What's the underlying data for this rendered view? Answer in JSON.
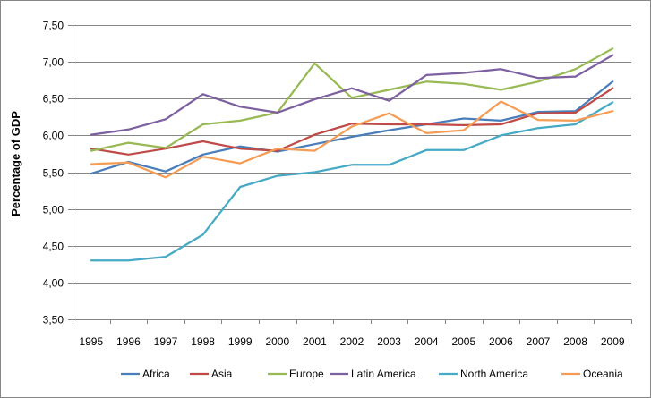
{
  "chart_data": {
    "type": "line",
    "title": "",
    "xlabel": "",
    "ylabel": "Percentage of GDP",
    "ylim": [
      3.5,
      7.5
    ],
    "y_ticks": [
      "3,50",
      "4,00",
      "4,50",
      "5,00",
      "5,50",
      "6,00",
      "6,50",
      "7,00",
      "7,50"
    ],
    "x": [
      "1995",
      "1996",
      "1997",
      "1998",
      "1999",
      "2000",
      "2001",
      "2002",
      "2003",
      "2004",
      "2005",
      "2006",
      "2007",
      "2008",
      "2009"
    ],
    "grid": true,
    "legend_position": "bottom",
    "series": [
      {
        "name": "Africa",
        "color": "#4A7EBB",
        "values": [
          5.48,
          5.64,
          5.51,
          5.74,
          5.85,
          5.78,
          5.88,
          5.98,
          6.07,
          6.15,
          6.23,
          6.2,
          6.32,
          6.33,
          6.73
        ]
      },
      {
        "name": "Asia",
        "color": "#BE4B48",
        "values": [
          5.82,
          5.74,
          5.82,
          5.92,
          5.82,
          5.79,
          6.01,
          6.16,
          6.15,
          6.15,
          6.14,
          6.15,
          6.3,
          6.31,
          6.64
        ]
      },
      {
        "name": "Europe",
        "color": "#98B954",
        "values": [
          5.79,
          5.9,
          5.83,
          6.15,
          6.2,
          6.31,
          6.98,
          6.51,
          6.62,
          6.73,
          6.7,
          6.62,
          6.73,
          6.9,
          7.18
        ]
      },
      {
        "name": "Latin America",
        "color": "#7D60A0",
        "values": [
          6.01,
          6.08,
          6.22,
          6.56,
          6.39,
          6.31,
          6.49,
          6.64,
          6.47,
          6.82,
          6.85,
          6.9,
          6.78,
          6.8,
          7.09
        ]
      },
      {
        "name": "North America",
        "color": "#46AAC5",
        "values": [
          4.3,
          4.3,
          4.35,
          4.65,
          5.3,
          5.45,
          5.5,
          5.6,
          5.6,
          5.8,
          5.8,
          6.0,
          6.1,
          6.15,
          6.45
        ]
      },
      {
        "name": "Oceania",
        "color": "#F59D56",
        "values": [
          5.61,
          5.63,
          5.43,
          5.71,
          5.62,
          5.82,
          5.79,
          6.12,
          6.3,
          6.03,
          6.07,
          6.46,
          6.21,
          6.2,
          6.33
        ]
      }
    ]
  }
}
